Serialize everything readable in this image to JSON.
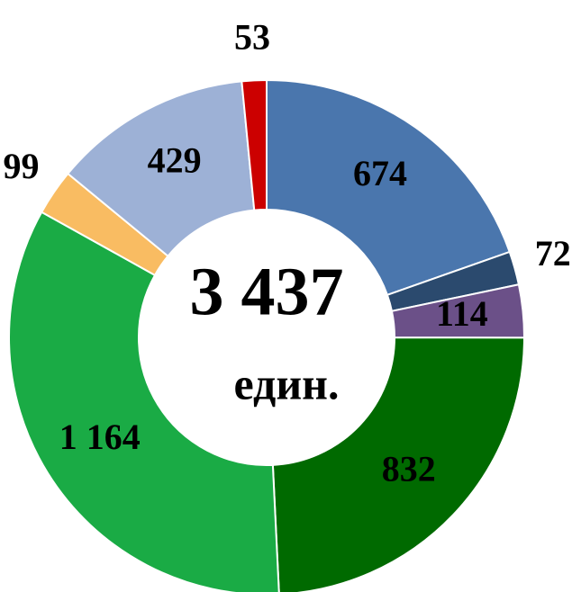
{
  "chart_data": {
    "type": "donut",
    "values": [
      674,
      72,
      114,
      832,
      1164,
      99,
      429,
      53
    ],
    "value_labels": [
      "674",
      "72",
      "114",
      "832",
      "1 164",
      "99",
      "429",
      "53"
    ],
    "colors": [
      "#4a76ad",
      "#2b4a6e",
      "#6b5088",
      "#006a00",
      "#1aab45",
      "#f9bc62",
      "#9db1d6",
      "#cc0000"
    ],
    "center_label": "3 437",
    "center_unit": "един."
  }
}
